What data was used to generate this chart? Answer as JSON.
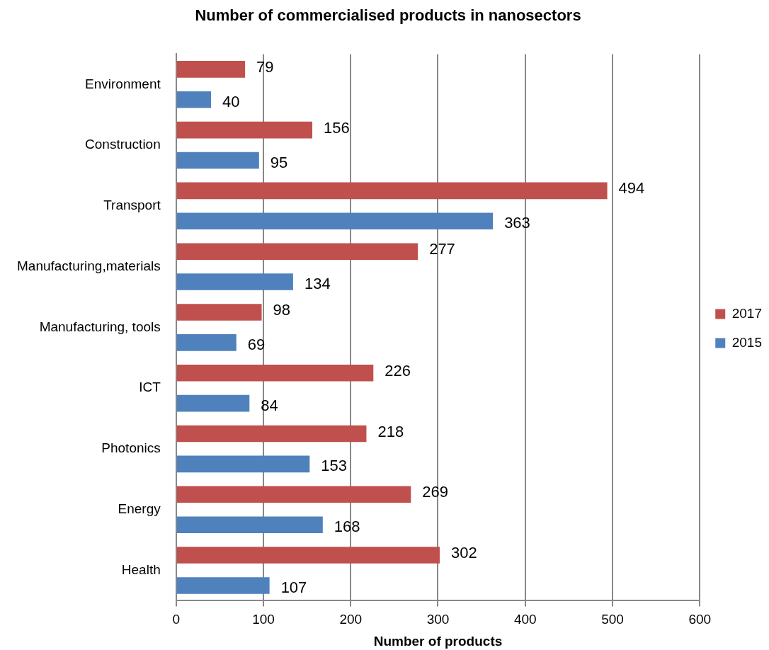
{
  "chart_data": {
    "type": "bar",
    "orientation": "horizontal",
    "title": "Number of commercialised products in nanosectors",
    "xlabel": "Number of products",
    "categories": [
      "Environment",
      "Construction",
      "Transport",
      "Manufacturing,materials",
      "Manufacturing, tools",
      "ICT",
      "Photonics",
      "Energy",
      "Health"
    ],
    "series": [
      {
        "name": "2017",
        "color": "#c0504d",
        "values": [
          79,
          156,
          494,
          277,
          98,
          226,
          218,
          269,
          302
        ]
      },
      {
        "name": "2015",
        "color": "#4f81bd",
        "values": [
          40,
          95,
          363,
          134,
          69,
          84,
          153,
          168,
          107
        ]
      }
    ],
    "xlim": [
      0,
      600
    ],
    "xticks": [
      0,
      100,
      200,
      300,
      400,
      500,
      600
    ],
    "grid": "x",
    "legend": "right",
    "data_labels": true
  }
}
